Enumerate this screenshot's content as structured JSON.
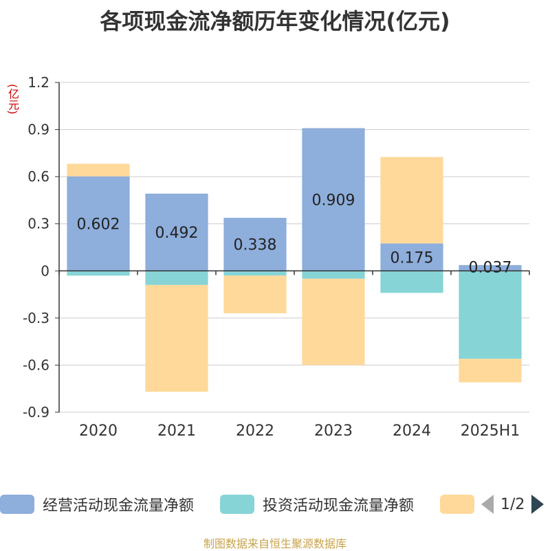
{
  "title": "各项现金流净额历年变化情况(亿元)",
  "unit_label": "(亿元)",
  "source": "制图数据来自恒生聚源数据库",
  "legend": {
    "items": [
      {
        "label": "经营活动现金流量净额",
        "color": "#8eaedb"
      },
      {
        "label": "投资活动现金流量净额",
        "color": "#86d4d6"
      },
      {
        "label": "",
        "color": "#ffd99a"
      }
    ],
    "page": "1/2"
  },
  "chart_data": {
    "type": "bar",
    "stacked": true,
    "categories": [
      "2020",
      "2021",
      "2022",
      "2023",
      "2024",
      "2025H1"
    ],
    "ylim": [
      -0.9,
      1.2
    ],
    "yticks": [
      "1.2",
      "0.9",
      "0.6",
      "0.3",
      "0",
      "-0.3",
      "-0.6",
      "-0.9"
    ],
    "grid": true,
    "legend_position": "bottom",
    "series": [
      {
        "name": "经营活动现金流量净额",
        "color": "#8eaedb",
        "values": [
          0.602,
          0.492,
          0.338,
          0.909,
          0.175,
          0.037
        ],
        "labels": [
          "0.602",
          "0.492",
          "0.338",
          "0.909",
          "0.175",
          "0.037"
        ]
      },
      {
        "name": "投资活动现金流量净额",
        "color": "#86d4d6",
        "values": [
          -0.03,
          -0.09,
          -0.03,
          -0.05,
          -0.14,
          -0.56
        ]
      },
      {
        "color": "#ffd99a",
        "values": [
          0.08,
          -0.68,
          -0.24,
          -0.55,
          0.55,
          -0.15
        ]
      }
    ]
  }
}
